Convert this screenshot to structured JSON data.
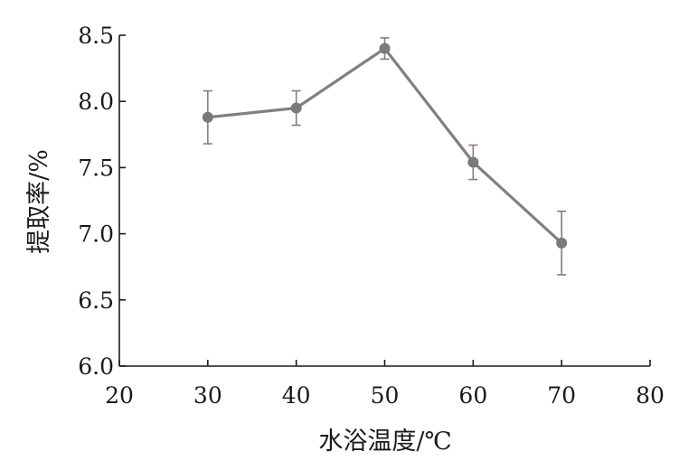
{
  "chart_data": {
    "type": "line",
    "title": "",
    "xlabel": "水浴温度/℃",
    "ylabel": "提取率/%",
    "xlim": [
      20,
      80
    ],
    "ylim": [
      6.0,
      8.5
    ],
    "xticks": [
      "20",
      "30",
      "40",
      "50",
      "60",
      "70",
      "80"
    ],
    "yticks": [
      "6.0",
      "6.5",
      "7.0",
      "7.5",
      "8.0",
      "8.5"
    ],
    "grid": false,
    "legend": "none",
    "series": [
      {
        "x": [
          30,
          40,
          50,
          60,
          70
        ],
        "y": [
          7.88,
          7.95,
          8.4,
          7.54,
          6.93
        ],
        "error": [
          0.2,
          0.13,
          0.08,
          0.13,
          0.24
        ]
      }
    ],
    "colors": {
      "line": "#808080",
      "marker": "#7a7a7a",
      "errorbar": "#8a7a7a",
      "axis": "#1a1a1a"
    }
  }
}
